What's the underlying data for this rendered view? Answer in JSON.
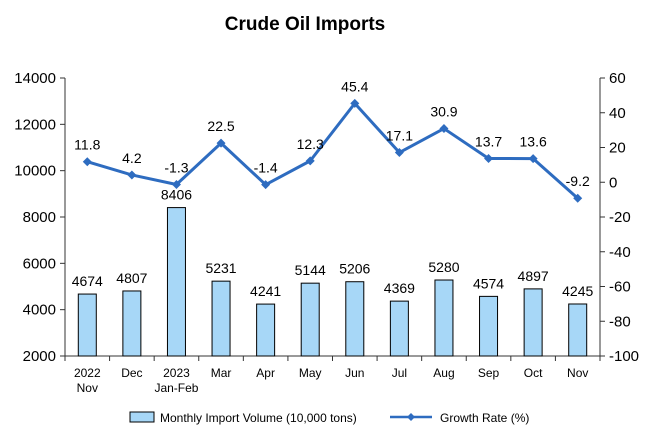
{
  "chart_data": {
    "type": "bar+line",
    "title": "Crude Oil Imports",
    "categories": [
      [
        "2022",
        "Nov"
      ],
      [
        "Dec"
      ],
      [
        "2023",
        "Jan-Feb"
      ],
      [
        "Mar"
      ],
      [
        "Apr"
      ],
      [
        "May"
      ],
      [
        "Jun"
      ],
      [
        "Jul"
      ],
      [
        "Aug"
      ],
      [
        "Sep"
      ],
      [
        "Oct"
      ],
      [
        "Nov"
      ]
    ],
    "series": [
      {
        "name": "Monthly Import Volume (10,000 tons)",
        "type": "bar",
        "axis": "left",
        "values": [
          4674,
          4807,
          8406,
          5231,
          4241,
          5144,
          5206,
          4369,
          5280,
          4574,
          4897,
          4245
        ],
        "color": "#a7d7f7"
      },
      {
        "name": "Growth Rate (%)",
        "type": "line",
        "axis": "right",
        "values": [
          11.8,
          4.2,
          -1.3,
          22.5,
          -1.4,
          12.3,
          45.4,
          17.1,
          30.9,
          13.7,
          13.6,
          -9.2
        ],
        "color": "#2e6cc0"
      }
    ],
    "y_left": {
      "min": 2000,
      "max": 14000,
      "ticks": [
        2000,
        4000,
        6000,
        8000,
        10000,
        12000,
        14000
      ]
    },
    "y_right": {
      "min": -100,
      "max": 60,
      "ticks": [
        -100,
        -80,
        -60,
        -40,
        -20,
        0,
        20,
        40,
        60
      ]
    },
    "grid": false,
    "legend_position": "bottom"
  }
}
